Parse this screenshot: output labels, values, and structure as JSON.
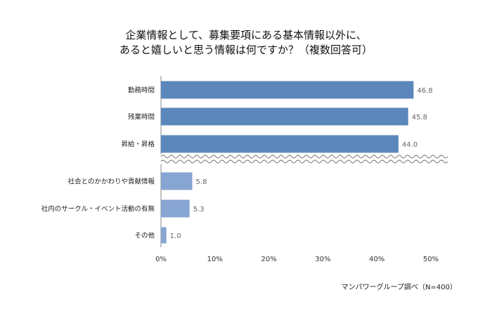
{
  "title_line1": "企業情報として、募集要項にある基本情報以外に、",
  "title_line2": "あると嬉しいと思う情報は何ですか？（複数回答可）",
  "source": "マンパワーグループ調べ（N=400）",
  "colors": {
    "bar_top": "#5b87bb",
    "bar_bottom": "#86a5d2",
    "axis": "#888888"
  },
  "chart_data": {
    "type": "bar",
    "orientation": "horizontal",
    "categories": [
      "勤務時間",
      "残業時間",
      "昇給・昇格",
      "社会とのかかわりや貢献情報",
      "社内のサークル・イベント活動の有無",
      "その他"
    ],
    "values": [
      46.8,
      45.8,
      44.0,
      5.8,
      5.3,
      1.0
    ],
    "value_labels": [
      "46.8",
      "45.8",
      "44.0",
      "5.8",
      "5.3",
      "1.0"
    ],
    "xticks": [
      "0%",
      "10%",
      "20%",
      "30%",
      "40%",
      "50%"
    ],
    "xlim": [
      0,
      50
    ],
    "axis_break": true,
    "grid": false
  }
}
